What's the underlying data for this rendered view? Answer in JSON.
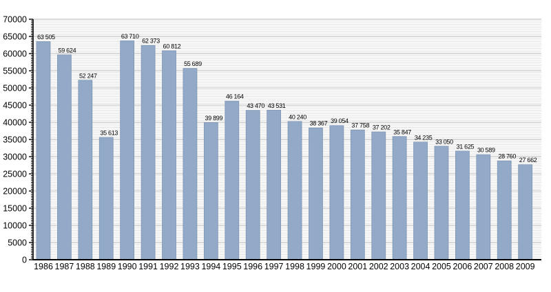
{
  "chart_data": {
    "type": "bar",
    "title": "",
    "xlabel": "",
    "ylabel": "",
    "categories": [
      "1986",
      "1987",
      "1988",
      "1989",
      "1990",
      "1991",
      "1992",
      "1993",
      "1994",
      "1995",
      "1996",
      "1997",
      "1998",
      "1999",
      "2000",
      "2001",
      "2002",
      "2003",
      "2004",
      "2005",
      "2006",
      "2007",
      "2008",
      "2009"
    ],
    "values": [
      63505,
      59624,
      52247,
      35613,
      63710,
      62373,
      60812,
      55689,
      39899,
      46164,
      43470,
      43531,
      40240,
      38367,
      39054,
      37758,
      37202,
      35847,
      34235,
      33050,
      31625,
      30589,
      28760,
      27662
    ],
    "value_labels": [
      "63 505",
      "59 624",
      "52 247",
      "35 613",
      "63 710",
      "62 373",
      "60 812",
      "55 689",
      "39 899",
      "46 164",
      "43 470",
      "43 531",
      "40 240",
      "38 367",
      "39 054",
      "37 758",
      "37 202",
      "35 847",
      "34 235",
      "33 050",
      "31 625",
      "30 589",
      "28 760",
      "27 662"
    ],
    "ylim": [
      0,
      70000
    ],
    "y_major_step": 5000,
    "y_minor_step": 500,
    "y_tick_labels": [
      "0",
      "5000",
      "10000",
      "15000",
      "20000",
      "25000",
      "30000",
      "35000",
      "40000",
      "45000",
      "50000",
      "55000",
      "60000",
      "65000",
      "70000"
    ],
    "grid": true,
    "legend_position": "none",
    "colors": {
      "bar_fill": "#92a9c7",
      "bar_border": "#7e96b5",
      "major_grid": "#b3b3b3",
      "minor_grid": "#e3e3e3",
      "axis": "#000000",
      "text": "#000000",
      "background": "#ffffff"
    }
  }
}
